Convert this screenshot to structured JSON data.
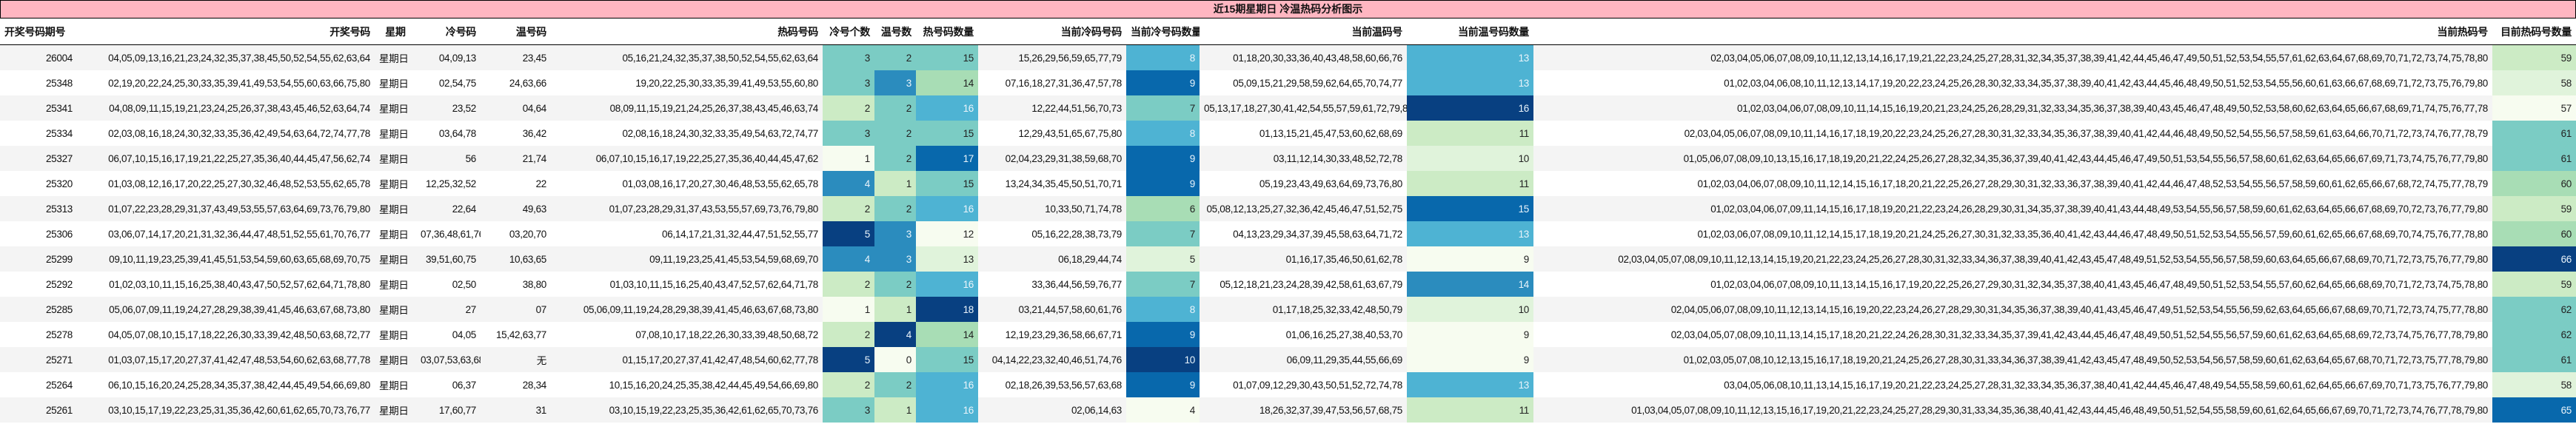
{
  "title": "近15期星期日 冷温热码分析图示",
  "columns": [
    "开奖号码期号",
    "开奖号码",
    "星期",
    "冷号码",
    "温号码",
    "热码号码",
    "冷号个数",
    "温号数",
    "热号码数量",
    "当前冷码号码",
    "当前冷号码数量",
    "当前温码号",
    "当前温号码数量",
    "当前热码号",
    "目前热码号数量"
  ],
  "colors": {
    "title_bg": "#FFB6C1",
    "row_alt": "#f4f4f4",
    "heat_scale": [
      "#f7fcf0",
      "#e0f3db",
      "#ccebc5",
      "#a8ddb5",
      "#7bccc4",
      "#4eb3d3",
      "#2b8cbe",
      "#0868ac",
      "#084081"
    ]
  },
  "rows": [
    {
      "issue": "26004",
      "draw": "04,05,09,13,16,21,23,24,32,35,37,38,45,50,52,54,55,62,63,64",
      "weekday": "星期日",
      "cold": "04,09,13",
      "warm": "23,45",
      "hot": "05,16,21,24,32,35,37,38,50,52,54,55,62,63,64",
      "cold_n": 3,
      "warm_n": 2,
      "hot_n": 15,
      "cur_cold": "15,26,29,56,59,65,77,79",
      "cur_cold_n": 8,
      "cur_warm": "01,18,20,30,33,36,40,43,48,58,60,66,76",
      "cur_warm_n": 13,
      "cur_hot": "02,03,04,05,06,07,08,09,10,11,12,13,14,16,17,19,21,22,23,24,25,27,28,31,32,34,35,37,38,39,41,42,44,45,46,47,49,50,51,52,53,54,55,57,61,62,63,64,67,68,69,70,71,72,73,74,75,78,80",
      "cur_hot_n": 59
    },
    {
      "issue": "25348",
      "draw": "02,19,20,22,24,25,30,33,35,39,41,49,53,54,55,60,63,66,75,80",
      "weekday": "星期日",
      "cold": "02,54,75",
      "warm": "24,63,66",
      "hot": "19,20,22,25,30,33,35,39,41,49,53,55,60,80",
      "cold_n": 3,
      "warm_n": 3,
      "hot_n": 14,
      "cur_cold": "07,16,18,27,31,36,47,57,78",
      "cur_cold_n": 9,
      "cur_warm": "05,09,15,21,29,58,59,62,64,65,70,74,77",
      "cur_warm_n": 13,
      "cur_hot": "01,02,03,04,06,08,10,11,12,13,14,17,19,20,22,23,24,25,26,28,30,32,33,34,35,37,38,39,40,41,42,43,44,45,46,48,49,50,51,52,53,54,55,56,60,61,63,66,67,68,69,71,72,73,75,76,79,80",
      "cur_hot_n": 58
    },
    {
      "issue": "25341",
      "draw": "04,08,09,11,15,19,21,23,24,25,26,37,38,43,45,46,52,63,64,74",
      "weekday": "星期日",
      "cold": "23,52",
      "warm": "04,64",
      "hot": "08,09,11,15,19,21,24,25,26,37,38,43,45,46,63,74",
      "cold_n": 2,
      "warm_n": 2,
      "hot_n": 16,
      "cur_cold": "12,22,44,51,56,70,73",
      "cur_cold_n": 7,
      "cur_warm": "05,13,17,18,27,30,41,42,54,55,57,59,61,72,79,80",
      "cur_warm_n": 16,
      "cur_hot": "01,02,03,04,06,07,08,09,10,11,14,15,16,19,20,21,23,24,25,26,28,29,31,32,33,34,35,36,37,38,39,40,43,45,46,47,48,49,50,52,53,58,60,62,63,64,65,66,67,68,69,71,74,75,76,77,78",
      "cur_hot_n": 57
    },
    {
      "issue": "25334",
      "draw": "02,03,08,16,18,24,30,32,33,35,36,42,49,54,63,64,72,74,77,78",
      "weekday": "星期日",
      "cold": "03,64,78",
      "warm": "36,42",
      "hot": "02,08,16,18,24,30,32,33,35,49,54,63,72,74,77",
      "cold_n": 3,
      "warm_n": 2,
      "hot_n": 15,
      "cur_cold": "12,29,43,51,65,67,75,80",
      "cur_cold_n": 8,
      "cur_warm": "01,13,15,21,45,47,53,60,62,68,69",
      "cur_warm_n": 11,
      "cur_hot": "02,03,04,05,06,07,08,09,10,11,14,16,17,18,19,20,22,23,24,25,26,27,28,30,31,32,33,34,35,36,37,38,39,40,41,42,44,46,48,49,50,52,54,55,56,57,58,59,61,63,64,66,70,71,72,73,74,76,77,78,79",
      "cur_hot_n": 61
    },
    {
      "issue": "25327",
      "draw": "06,07,10,15,16,17,19,21,22,25,27,35,36,40,44,45,47,56,62,74",
      "weekday": "星期日",
      "cold": "56",
      "warm": "21,74",
      "hot": "06,07,10,15,16,17,19,22,25,27,35,36,40,44,45,47,62",
      "cold_n": 1,
      "warm_n": 2,
      "hot_n": 17,
      "cur_cold": "02,04,23,29,31,38,59,68,70",
      "cur_cold_n": 9,
      "cur_warm": "03,11,12,14,30,33,48,52,72,78",
      "cur_warm_n": 10,
      "cur_hot": "01,05,06,07,08,09,10,13,15,16,17,18,19,20,21,22,24,25,26,27,28,32,34,35,36,37,39,40,41,42,43,44,45,46,47,49,50,51,53,54,55,56,57,58,60,61,62,63,64,65,66,67,69,71,73,74,75,76,77,79,80",
      "cur_hot_n": 61
    },
    {
      "issue": "25320",
      "draw": "01,03,08,12,16,17,20,22,25,27,30,32,46,48,52,53,55,62,65,78",
      "weekday": "星期日",
      "cold": "12,25,32,52",
      "warm": "22",
      "hot": "01,03,08,16,17,20,27,30,46,48,53,55,62,65,78",
      "cold_n": 4,
      "warm_n": 1,
      "hot_n": 15,
      "cur_cold": "13,24,34,35,45,50,51,70,71",
      "cur_cold_n": 9,
      "cur_warm": "05,19,23,43,49,63,64,69,73,76,80",
      "cur_warm_n": 11,
      "cur_hot": "01,02,03,04,06,07,08,09,10,11,12,14,15,16,17,18,20,21,22,25,26,27,28,29,30,31,32,33,36,37,38,39,40,41,42,44,46,47,48,52,53,54,55,56,57,58,59,60,61,62,65,66,67,68,72,74,75,77,78,79",
      "cur_hot_n": 60
    },
    {
      "issue": "25313",
      "draw": "01,07,22,23,28,29,31,37,43,49,53,55,57,63,64,69,73,76,79,80",
      "weekday": "星期日",
      "cold": "22,64",
      "warm": "49,63",
      "hot": "01,07,23,28,29,31,37,43,53,55,57,69,73,76,79,80",
      "cold_n": 2,
      "warm_n": 2,
      "hot_n": 16,
      "cur_cold": "10,33,50,71,74,78",
      "cur_cold_n": 6,
      "cur_warm": "05,08,12,13,25,27,32,36,42,45,46,47,51,52,75",
      "cur_warm_n": 15,
      "cur_hot": "01,02,03,04,06,07,09,11,14,15,16,17,18,19,20,21,22,23,24,26,28,29,30,31,34,35,37,38,39,40,41,43,44,48,49,53,54,55,56,57,58,59,60,61,62,63,64,65,66,67,68,69,70,72,73,76,77,79,80",
      "cur_hot_n": 59
    },
    {
      "issue": "25306",
      "draw": "03,06,07,14,17,20,21,31,32,36,44,47,48,51,52,55,61,70,76,77",
      "weekday": "星期日",
      "cold": "07,36,48,61,76",
      "warm": "03,20,70",
      "hot": "06,14,17,21,31,32,44,47,51,52,55,77",
      "cold_n": 5,
      "warm_n": 3,
      "hot_n": 12,
      "cur_cold": "05,16,22,28,38,73,79",
      "cur_cold_n": 7,
      "cur_warm": "04,13,23,29,34,37,39,45,58,63,64,71,72",
      "cur_warm_n": 13,
      "cur_hot": "01,02,03,06,07,08,09,10,11,12,14,15,17,18,19,20,21,24,25,26,27,30,31,32,33,35,36,40,41,42,43,44,46,47,48,49,50,51,52,53,54,55,56,57,59,60,61,62,65,66,67,68,69,70,74,75,76,77,78,80",
      "cur_hot_n": 60
    },
    {
      "issue": "25299",
      "draw": "09,10,11,19,23,25,39,41,45,51,53,54,59,60,63,65,68,69,70,75",
      "weekday": "星期日",
      "cold": "39,51,60,75",
      "warm": "10,63,65",
      "hot": "09,11,19,23,25,41,45,53,54,59,68,69,70",
      "cold_n": 4,
      "warm_n": 3,
      "hot_n": 13,
      "cur_cold": "06,18,29,44,74",
      "cur_cold_n": 5,
      "cur_warm": "01,16,17,35,46,50,61,62,78",
      "cur_warm_n": 9,
      "cur_hot": "02,03,04,05,07,08,09,10,11,12,13,14,15,19,20,21,22,23,24,25,26,27,28,30,31,32,33,34,36,37,38,39,40,41,42,43,45,47,48,49,51,52,53,54,55,56,57,58,59,60,63,64,65,66,67,68,69,70,71,72,73,75,76,77,79,80",
      "cur_hot_n": 66
    },
    {
      "issue": "25292",
      "draw": "01,02,03,10,11,15,16,25,38,40,43,47,50,52,57,62,64,71,78,80",
      "weekday": "星期日",
      "cold": "02,50",
      "warm": "38,80",
      "hot": "01,03,10,11,15,16,25,40,43,47,52,57,62,64,71,78",
      "cold_n": 2,
      "warm_n": 2,
      "hot_n": 16,
      "cur_cold": "33,36,44,56,59,76,77",
      "cur_cold_n": 7,
      "cur_warm": "05,12,18,21,23,24,28,39,42,58,61,63,67,79",
      "cur_warm_n": 14,
      "cur_hot": "01,02,03,04,06,07,08,09,10,11,13,14,15,16,17,19,20,22,25,26,27,29,30,31,32,34,35,37,38,40,41,43,45,46,47,48,49,50,51,52,53,54,55,57,60,62,64,65,66,68,69,70,71,72,73,74,75,78,80",
      "cur_hot_n": 59
    },
    {
      "issue": "25285",
      "draw": "05,06,07,09,11,19,24,27,28,29,38,39,41,45,46,63,67,68,73,80",
      "weekday": "星期日",
      "cold": "27",
      "warm": "07",
      "hot": "05,06,09,11,19,24,28,29,38,39,41,45,46,63,67,68,73,80",
      "cold_n": 1,
      "warm_n": 1,
      "hot_n": 18,
      "cur_cold": "03,21,44,57,58,60,61,76",
      "cur_cold_n": 8,
      "cur_warm": "01,17,18,25,32,33,42,48,50,79",
      "cur_warm_n": 10,
      "cur_hot": "02,04,05,06,07,08,09,10,11,12,13,14,15,16,19,20,22,23,24,26,27,28,29,30,31,34,35,36,37,38,39,40,41,43,45,46,47,49,51,52,53,54,55,56,59,62,63,64,65,66,67,68,69,70,71,72,73,74,75,77,78,80",
      "cur_hot_n": 62
    },
    {
      "issue": "25278",
      "draw": "04,05,07,08,10,15,17,18,22,26,30,33,39,42,48,50,63,68,72,77",
      "weekday": "星期日",
      "cold": "04,05",
      "warm": "15,42,63,77",
      "hot": "07,08,10,17,18,22,26,30,33,39,48,50,68,72",
      "cold_n": 2,
      "warm_n": 4,
      "hot_n": 14,
      "cur_cold": "12,19,23,29,36,58,66,67,71",
      "cur_cold_n": 9,
      "cur_warm": "01,06,16,25,27,38,40,53,70",
      "cur_warm_n": 9,
      "cur_hot": "02,03,04,05,07,08,09,10,11,13,14,15,17,18,20,21,22,24,26,28,30,31,32,33,34,35,37,39,41,42,43,44,45,46,47,48,49,50,51,52,54,55,56,57,59,60,61,62,63,64,65,68,69,72,73,74,75,76,77,78,79,80",
      "cur_hot_n": 62
    },
    {
      "issue": "25271",
      "draw": "01,03,07,15,17,20,27,37,41,42,47,48,53,54,60,62,63,68,77,78",
      "weekday": "星期日",
      "cold": "03,07,53,63,68",
      "warm": "无",
      "hot": "01,15,17,20,27,37,41,42,47,48,54,60,62,77,78",
      "cold_n": 5,
      "warm_n": 0,
      "hot_n": 15,
      "cur_cold": "04,14,22,23,32,40,46,51,74,76",
      "cur_cold_n": 10,
      "cur_warm": "06,09,11,29,35,44,55,66,69",
      "cur_warm_n": 9,
      "cur_hot": "01,02,03,05,07,08,10,12,13,15,16,17,18,19,20,21,24,25,26,27,28,30,31,33,34,36,37,38,39,41,42,43,45,47,48,49,50,52,53,54,56,57,58,59,60,61,62,63,64,65,67,68,70,71,72,73,75,77,78,79,80",
      "cur_hot_n": 61
    },
    {
      "issue": "25264",
      "draw": "06,10,15,16,20,24,25,28,34,35,37,38,42,44,45,49,54,66,69,80",
      "weekday": "星期日",
      "cold": "06,37",
      "warm": "28,34",
      "hot": "10,15,16,20,24,25,35,38,42,44,45,49,54,66,69,80",
      "cold_n": 2,
      "warm_n": 2,
      "hot_n": 16,
      "cur_cold": "02,18,26,39,53,56,57,63,68",
      "cur_cold_n": 9,
      "cur_warm": "01,07,09,12,29,30,43,50,51,52,72,74,78",
      "cur_warm_n": 13,
      "cur_hot": "03,04,05,06,08,10,11,13,14,15,16,17,19,20,21,22,23,24,25,27,28,31,32,33,34,35,36,37,38,40,41,42,44,45,46,47,48,49,54,55,58,59,60,61,62,64,65,66,67,69,70,71,73,75,76,77,79,80",
      "cur_hot_n": 58
    },
    {
      "issue": "25261",
      "draw": "03,10,15,17,19,22,23,25,31,35,36,42,60,61,62,65,70,73,76,77",
      "weekday": "星期日",
      "cold": "17,60,77",
      "warm": "31",
      "hot": "03,10,15,19,22,23,25,35,36,42,61,62,65,70,73,76",
      "cold_n": 3,
      "warm_n": 1,
      "hot_n": 16,
      "cur_cold": "02,06,14,63",
      "cur_cold_n": 4,
      "cur_warm": "18,26,32,37,39,47,53,56,57,68,75",
      "cur_warm_n": 11,
      "cur_hot": "01,03,04,05,07,08,09,10,11,12,13,15,16,17,19,20,21,22,23,24,25,27,28,29,30,31,33,34,35,36,38,40,41,42,43,44,45,46,48,49,50,51,52,54,55,58,59,60,61,62,64,65,66,67,69,70,71,72,73,74,76,77,78,79,80",
      "cur_hot_n": 65
    }
  ]
}
